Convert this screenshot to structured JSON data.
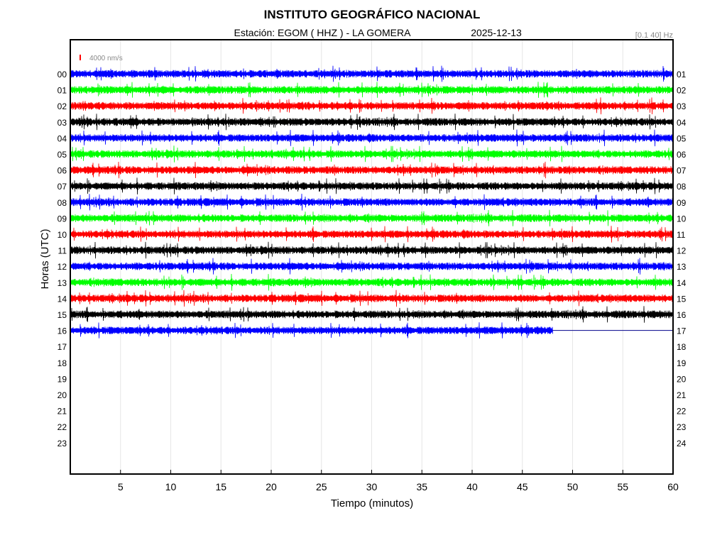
{
  "title": "INSTITUTO GEOGRÁFICO NACIONAL",
  "subtitle_station": "Estación:  EGOM ( HHZ ) - LA GOMERA",
  "subtitle_date": "2025-12-13",
  "filter_label": "[0.1 40] Hz",
  "scale_label": "4000 nm/s",
  "colors": {
    "scale_bar": "#ff0000",
    "filter_text": "#888888",
    "grid": "#e6e6e6",
    "cycle": [
      "#0000ff",
      "#00ff00",
      "#ff0000",
      "#000000"
    ],
    "gap_line": "#00008b"
  },
  "chart_data": {
    "type": "line",
    "title": "INSTITUTO GEOGRÁFICO NACIONAL",
    "xlabel": "Tiempo (minutos)",
    "ylabel": "Horas (UTC)",
    "xlim": [
      0,
      60
    ],
    "x_ticks": [
      5,
      10,
      15,
      20,
      25,
      30,
      35,
      40,
      45,
      50,
      55,
      60
    ],
    "left_labels": [
      "00",
      "01",
      "02",
      "03",
      "04",
      "05",
      "06",
      "07",
      "08",
      "09",
      "10",
      "11",
      "12",
      "13",
      "14",
      "15",
      "16",
      "17",
      "18",
      "19",
      "20",
      "21",
      "22",
      "23"
    ],
    "right_labels": [
      "01",
      "02",
      "03",
      "04",
      "05",
      "06",
      "07",
      "08",
      "09",
      "10",
      "11",
      "12",
      "13",
      "14",
      "15",
      "16",
      "17",
      "18",
      "19",
      "20",
      "21",
      "22",
      "23",
      "24"
    ],
    "grid": true,
    "trace_end_minutes": [
      60,
      60,
      60,
      60,
      60,
      60,
      60,
      60,
      60,
      60,
      60,
      60,
      60,
      60,
      60,
      60,
      48
    ],
    "flat_line_after_end": {
      "hour_index": 16,
      "from_minutes": 48,
      "to_minutes": 60
    }
  }
}
